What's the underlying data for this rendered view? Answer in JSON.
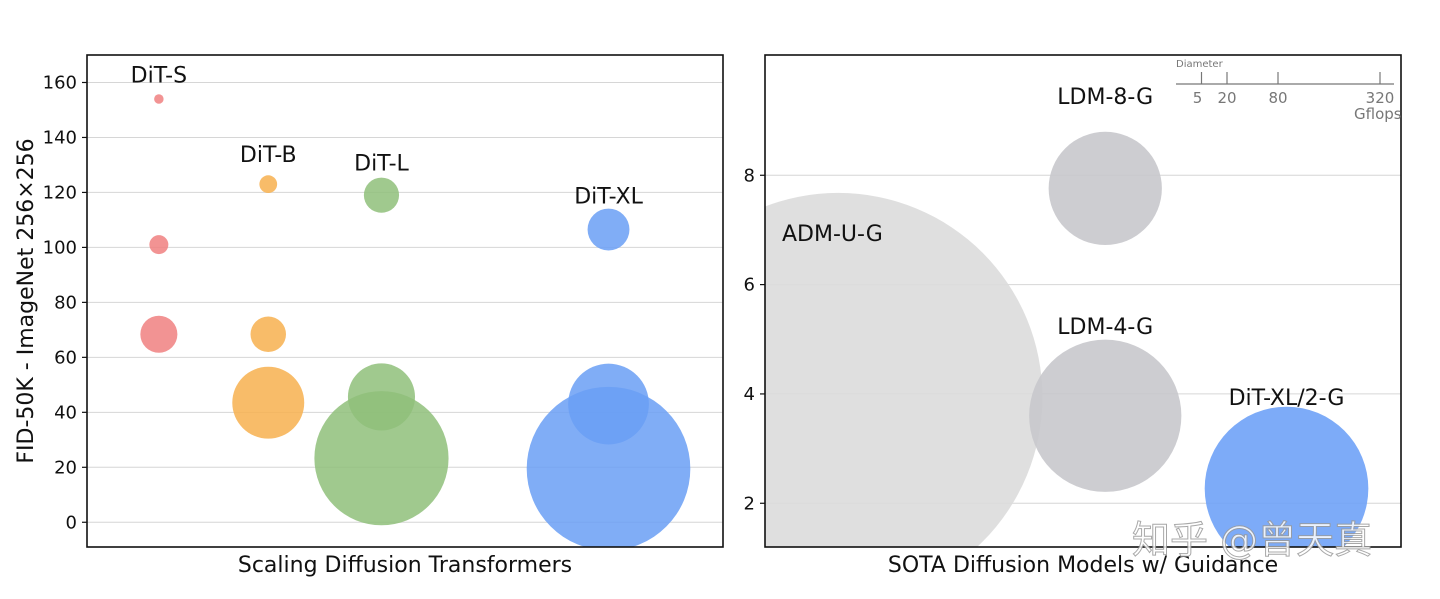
{
  "chart_data": [
    {
      "type": "scatter",
      "xlabel": "Scaling Diffusion Transformers",
      "ylabel": "FID-50K - ImageNet 256×256",
      "ylim": [
        -9,
        170
      ],
      "xlim": [
        0,
        1
      ],
      "yticks": [
        0,
        20,
        40,
        60,
        80,
        100,
        120,
        140,
        160
      ],
      "grid": true,
      "series": [
        {
          "name": "DiT-S",
          "color": "#f08080",
          "x": 0.113,
          "label_y": 160,
          "points": [
            {
              "fid": 154,
              "gflops": 0.4
            },
            {
              "fid": 101,
              "gflops": 1.6
            },
            {
              "fid": 68.4,
              "gflops": 6.1
            }
          ]
        },
        {
          "name": "DiT-B",
          "color": "#f7b04f",
          "x": 0.285,
          "label_y": 131,
          "points": [
            {
              "fid": 123,
              "gflops": 1.4
            },
            {
              "fid": 68.4,
              "gflops": 5.6
            },
            {
              "fid": 43.5,
              "gflops": 23
            }
          ]
        },
        {
          "name": "DiT-L",
          "color": "#8fbf7a",
          "x": 0.463,
          "label_y": 128,
          "points": [
            {
              "fid": 119,
              "gflops": 5.5
            },
            {
              "fid": 45.6,
              "gflops": 20
            },
            {
              "fid": 23.3,
              "gflops": 80
            }
          ]
        },
        {
          "name": "DiT-XL",
          "color": "#6a9ff5",
          "x": 0.82,
          "label_y": 116,
          "points": [
            {
              "fid": 106.5,
              "gflops": 7.8
            },
            {
              "fid": 43,
              "gflops": 29
            },
            {
              "fid": 19.5,
              "gflops": 119
            }
          ]
        }
      ]
    },
    {
      "type": "scatter",
      "xlabel": "SOTA Diffusion Models w/ Guidance",
      "ylim": [
        1.2,
        10.2
      ],
      "xlim": [
        0,
        1
      ],
      "yticks": [
        2,
        4,
        6,
        8
      ],
      "grid": true,
      "series": [
        {
          "name": "ADM-U-G",
          "color": "#dcdcdc",
          "x": 0.115,
          "y": 3.94,
          "gflops": 742,
          "label_y": 6.8
        },
        {
          "name": "LDM-8-G",
          "color": "#c8c8cc",
          "x": 0.535,
          "y": 7.76,
          "gflops": 57,
          "label_y": 9.3
        },
        {
          "name": "LDM-4-G",
          "color": "#c8c8cc",
          "x": 0.535,
          "y": 3.6,
          "gflops": 103,
          "label_y": 5.1
        },
        {
          "name": "DiT-XL/2-G",
          "color": "#6fa2f7",
          "x": 0.82,
          "y": 2.27,
          "gflops": 119,
          "label_y": 3.8
        }
      ],
      "size_legend": {
        "title": "Diameter",
        "ticks": [
          5,
          20,
          80,
          320
        ],
        "unit": "Gflops"
      }
    }
  ],
  "watermark": "知乎 @曾天真"
}
